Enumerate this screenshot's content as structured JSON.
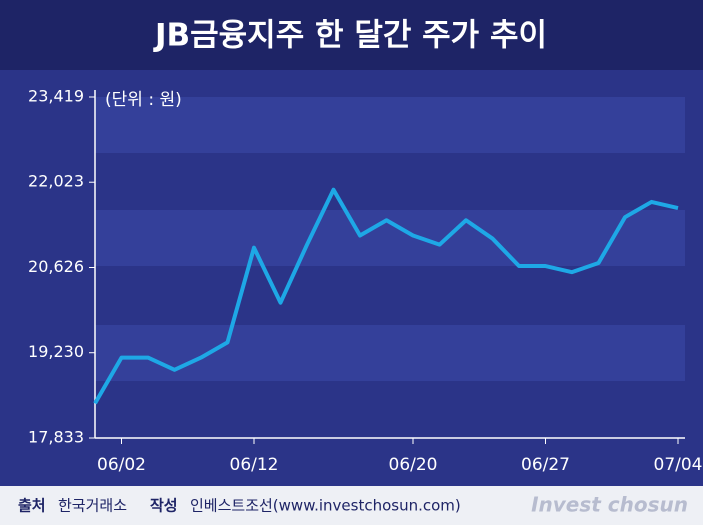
{
  "chart_data": {
    "type": "line",
    "title": "JB금융지주 한 달간 주가 추이",
    "unit_note": "(단위 : 원)",
    "categories": [
      null,
      "06/02",
      null,
      null,
      null,
      null,
      "06/12",
      null,
      null,
      null,
      null,
      null,
      "06/20",
      null,
      null,
      null,
      null,
      "06/27",
      null,
      null,
      null,
      null,
      "07/04"
    ],
    "series": [
      {
        "name": "JB금융지주",
        "color": "#1ea8e6",
        "values": [
          18400,
          19150,
          19150,
          18950,
          19150,
          19400,
          20950,
          20050,
          21000,
          21900,
          21150,
          21400,
          21150,
          21000,
          21400,
          21100,
          20650,
          20650,
          20550,
          20700,
          21450,
          21700,
          21600
        ]
      }
    ],
    "ylim": [
      17833,
      23419
    ],
    "yticks": [
      {
        "value": 17833,
        "label": "17,833"
      },
      {
        "value": 19230,
        "label": "19,230"
      },
      {
        "value": 20626,
        "label": "20,626"
      },
      {
        "value": 22023,
        "label": "22,023"
      },
      {
        "value": 23419,
        "label": "23,419"
      }
    ]
  },
  "footer": {
    "source_label": "출처",
    "source": "한국거래소",
    "author_label": "작성",
    "author": "인베스트조선(www.investchosun.com)",
    "logo": "Invest chosun"
  }
}
